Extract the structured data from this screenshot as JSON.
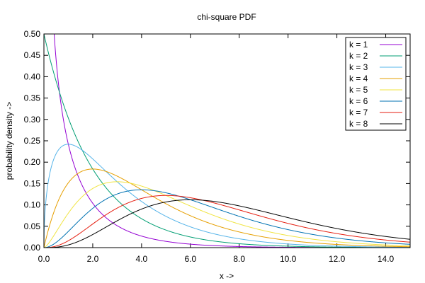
{
  "chart_data": {
    "type": "line",
    "title": "chi-square PDF",
    "xlabel": "x ->",
    "ylabel": "probability density ->",
    "xlim": [
      0,
      15
    ],
    "ylim": [
      0,
      0.5
    ],
    "x_ticks": [
      "0.0",
      "2.0",
      "4.0",
      "6.0",
      "8.0",
      "10.0",
      "12.0",
      "14.0"
    ],
    "x_tick_values": [
      0,
      2,
      4,
      6,
      8,
      10,
      12,
      14
    ],
    "y_ticks": [
      "0.00",
      "0.05",
      "0.10",
      "0.15",
      "0.20",
      "0.25",
      "0.30",
      "0.35",
      "0.40",
      "0.45",
      "0.50"
    ],
    "y_tick_values": [
      0,
      0.05,
      0.1,
      0.15,
      0.2,
      0.25,
      0.3,
      0.35,
      0.4,
      0.45,
      0.5
    ],
    "grid": false,
    "legend_position": "top-right",
    "x": [
      0.5,
      1,
      2,
      3,
      4,
      5,
      6,
      8,
      10,
      12,
      14
    ],
    "series": [
      {
        "name": "k = 1",
        "color": "#9400d3",
        "k": 1,
        "values": [
          0.439,
          0.242,
          0.104,
          0.051,
          0.027,
          0.015,
          0.008,
          0.003,
          0.001,
          0.0,
          0.0
        ]
      },
      {
        "name": "k = 2",
        "color": "#009e73",
        "k": 2,
        "values": [
          0.389,
          0.303,
          0.184,
          0.112,
          0.068,
          0.041,
          0.025,
          0.009,
          0.003,
          0.001,
          0.0
        ]
      },
      {
        "name": "k = 3",
        "color": "#56b4e9",
        "k": 3,
        "values": [
          0.22,
          0.242,
          0.208,
          0.154,
          0.108,
          0.073,
          0.048,
          0.02,
          0.008,
          0.003,
          0.001
        ]
      },
      {
        "name": "k = 4",
        "color": "#e69f00",
        "k": 4,
        "values": [
          0.097,
          0.152,
          0.184,
          0.167,
          0.135,
          0.103,
          0.075,
          0.037,
          0.017,
          0.007,
          0.003
        ]
      },
      {
        "name": "k = 5",
        "color": "#f0e442",
        "k": 5,
        "values": [
          0.037,
          0.081,
          0.138,
          0.154,
          0.144,
          0.122,
          0.096,
          0.055,
          0.028,
          0.013,
          0.006
        ]
      },
      {
        "name": "k = 6",
        "color": "#0072b2",
        "k": 6,
        "values": [
          0.012,
          0.038,
          0.092,
          0.126,
          0.135,
          0.128,
          0.112,
          0.073,
          0.042,
          0.022,
          0.011
        ]
      },
      {
        "name": "k = 7",
        "color": "#e51e10",
        "k": 7,
        "values": [
          0.004,
          0.016,
          0.055,
          0.092,
          0.114,
          0.122,
          0.119,
          0.09,
          0.058,
          0.033,
          0.018
        ]
      },
      {
        "name": "k = 8",
        "color": "#000000",
        "k": 8,
        "values": [
          0.001,
          0.006,
          0.031,
          0.063,
          0.09,
          0.107,
          0.112,
          0.098,
          0.07,
          0.045,
          0.026
        ]
      }
    ]
  }
}
